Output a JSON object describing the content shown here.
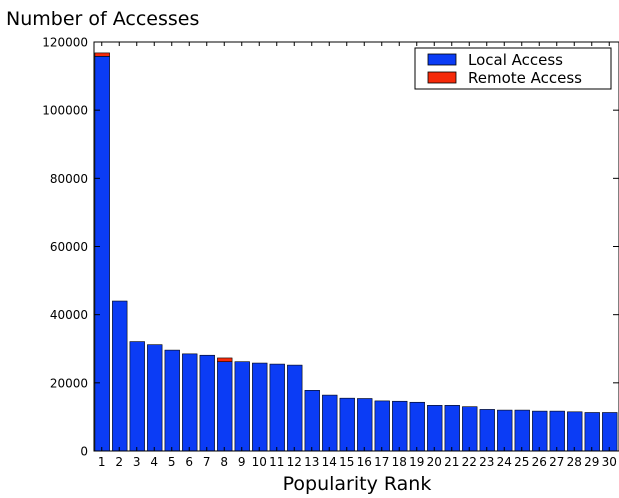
{
  "chart_data": {
    "type": "bar",
    "title": "",
    "ylabel": "Number of Accesses",
    "xlabel": "Popularity Rank",
    "categories": [
      "1",
      "2",
      "3",
      "4",
      "5",
      "6",
      "7",
      "8",
      "9",
      "10",
      "11",
      "12",
      "13",
      "14",
      "15",
      "16",
      "17",
      "18",
      "19",
      "20",
      "21",
      "22",
      "23",
      "24",
      "25",
      "26",
      "27",
      "28",
      "29",
      "30"
    ],
    "stacked": true,
    "series": [
      {
        "name": "Local Access",
        "color": "#0b3cf5",
        "values": [
          115800,
          44000,
          32100,
          31200,
          29600,
          28500,
          28100,
          26200,
          26200,
          25800,
          25500,
          25200,
          17800,
          16400,
          15500,
          15400,
          14700,
          14600,
          14300,
          13400,
          13400,
          13000,
          12200,
          12000,
          12000,
          11700,
          11700,
          11500,
          11300,
          11300
        ]
      },
      {
        "name": "Remote Access",
        "color": "#f52a0a",
        "values": [
          1000,
          0,
          0,
          0,
          0,
          0,
          0,
          1100,
          0,
          0,
          0,
          0,
          0,
          0,
          0,
          0,
          0,
          0,
          0,
          0,
          0,
          0,
          0,
          0,
          0,
          0,
          0,
          0,
          0,
          0
        ]
      }
    ],
    "ylim": [
      0,
      120000
    ],
    "yticks": [
      "0",
      "20000",
      "40000",
      "60000",
      "80000",
      "100000",
      "120000"
    ],
    "grid": false,
    "legend_position": "top-right"
  }
}
